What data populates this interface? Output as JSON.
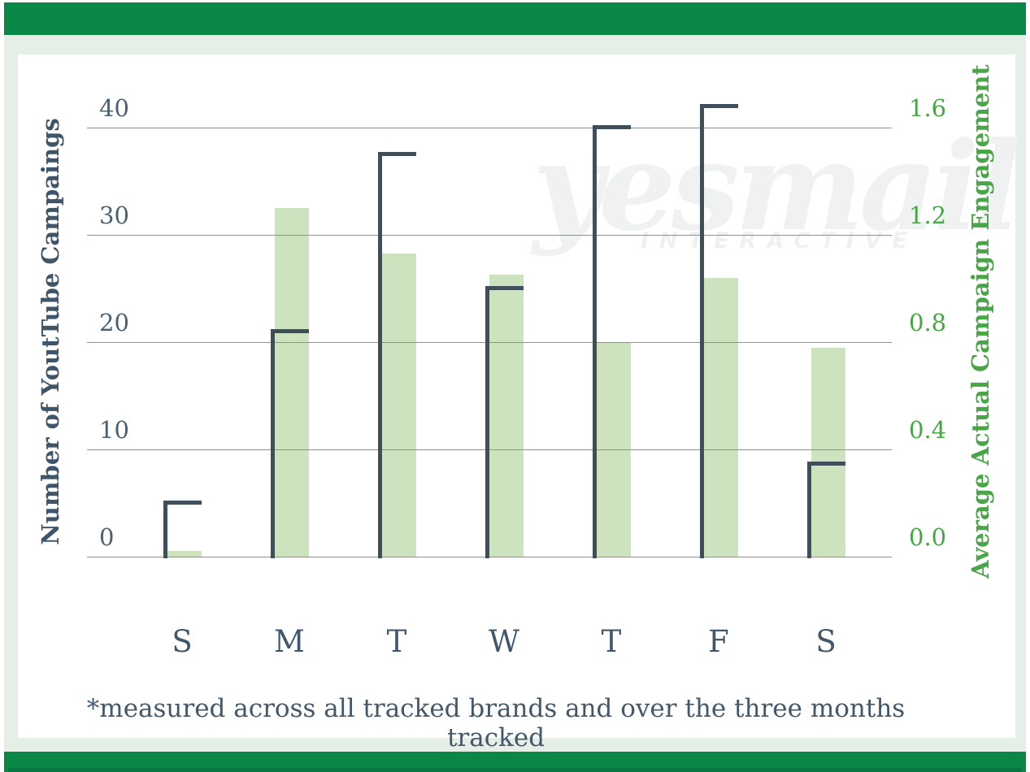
{
  "frame": {
    "header_color": "#0a8747",
    "mat_color": "#e6eee8",
    "watermark_line1": "yesmail",
    "watermark_line2": "INTERACTIVE"
  },
  "chart_data": {
    "type": "bar",
    "categories": [
      "S",
      "M",
      "T",
      "W",
      "T",
      "F",
      "S"
    ],
    "series": [
      {
        "name": "Number of YoutTube Campaings",
        "axis": "left",
        "style": "outline-step",
        "color": "#3e4f5b",
        "values": [
          5,
          21,
          37.5,
          25,
          40,
          42,
          8.6
        ]
      },
      {
        "name": "Average Actual Campaign Engagement",
        "axis": "right",
        "style": "filled-bar",
        "color": "#cde2bf",
        "values": [
          0.02,
          1.3,
          1.13,
          1.05,
          0.8,
          1.04,
          0.78
        ]
      }
    ],
    "left_axis": {
      "label": "Number of YoutTube Campaings",
      "ticks": [
        40,
        30,
        20,
        10,
        0
      ],
      "range": [
        0,
        40
      ],
      "color": "#3f566a"
    },
    "right_axis": {
      "label": "Average Actual Campaign Engagement",
      "ticks": [
        1.6,
        1.2,
        0.8,
        0.4,
        0.0
      ],
      "range": [
        0,
        1.6
      ],
      "color": "#4aa448"
    },
    "grid": true,
    "legend": "none",
    "gridline_color": "#8d9196",
    "footnote": "*measured across all tracked brands and over the three months tracked"
  }
}
